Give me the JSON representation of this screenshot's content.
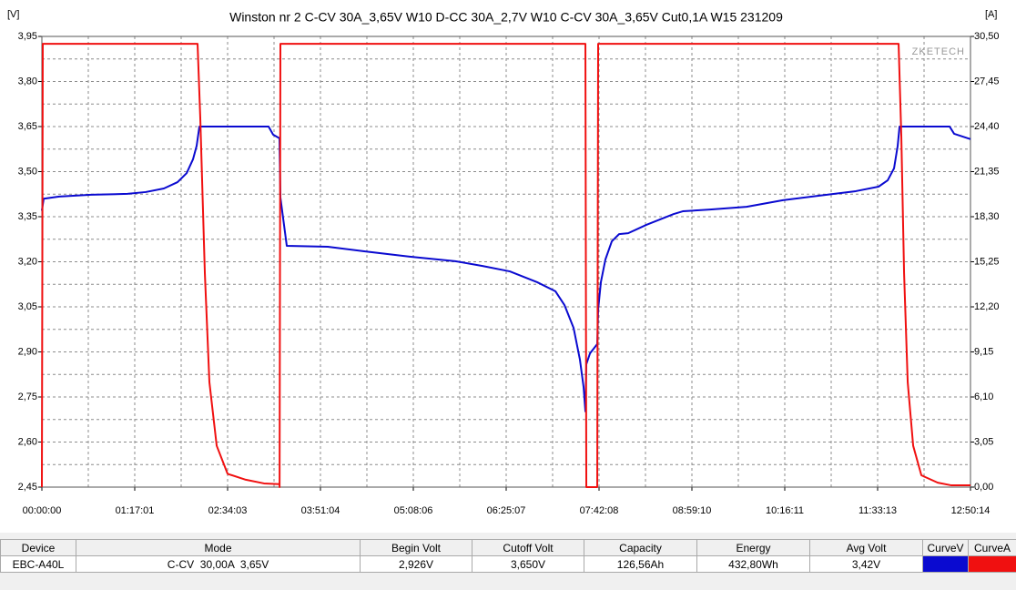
{
  "chart_data": {
    "type": "line",
    "title": "Winston nr 2 C-CV 30A_3,65V W10 D-CC 30A_2,7V W10 C-CV 30A_3,65V Cut0,1A W15 231209",
    "y_label": "[V]",
    "y2_label": "[A]",
    "watermark": "ZKETECH",
    "xlim": [
      0,
      46214
    ],
    "xticks": [
      {
        "value": 0,
        "label": "00:00:00"
      },
      {
        "value": 4621,
        "label": "01:17:01"
      },
      {
        "value": 9243,
        "label": "02:34:03"
      },
      {
        "value": 13864,
        "label": "03:51:04"
      },
      {
        "value": 18486,
        "label": "05:08:06"
      },
      {
        "value": 23107,
        "label": "06:25:07"
      },
      {
        "value": 27728,
        "label": "07:42:08"
      },
      {
        "value": 32350,
        "label": "08:59:10"
      },
      {
        "value": 36971,
        "label": "10:16:11"
      },
      {
        "value": 41593,
        "label": "11:33:13"
      },
      {
        "value": 46214,
        "label": "12:50:14"
      }
    ],
    "ylim": [
      2.45,
      3.95
    ],
    "yticks": [
      {
        "value": 2.45,
        "label": "2,45"
      },
      {
        "value": 2.6,
        "label": "2,60"
      },
      {
        "value": 2.75,
        "label": "2,75"
      },
      {
        "value": 2.9,
        "label": "2,90"
      },
      {
        "value": 3.05,
        "label": "3,05"
      },
      {
        "value": 3.2,
        "label": "3,20"
      },
      {
        "value": 3.35,
        "label": "3,35"
      },
      {
        "value": 3.5,
        "label": "3,50"
      },
      {
        "value": 3.65,
        "label": "3,65"
      },
      {
        "value": 3.8,
        "label": "3,80"
      },
      {
        "value": 3.95,
        "label": "3,95"
      }
    ],
    "y2lim": [
      0,
      30.5
    ],
    "y2ticks": [
      {
        "value": 0,
        "label": "0,00"
      },
      {
        "value": 3.05,
        "label": "3,05"
      },
      {
        "value": 6.1,
        "label": "6,10"
      },
      {
        "value": 9.15,
        "label": "9,15"
      },
      {
        "value": 12.2,
        "label": "12,20"
      },
      {
        "value": 15.25,
        "label": "15,25"
      },
      {
        "value": 18.3,
        "label": "18,30"
      },
      {
        "value": 21.35,
        "label": "21,35"
      },
      {
        "value": 24.4,
        "label": "24,40"
      },
      {
        "value": 27.45,
        "label": "27,45"
      },
      {
        "value": 30.5,
        "label": "30,50"
      }
    ],
    "grid": true,
    "minor_grid": true,
    "series": [
      {
        "name": "CurveV",
        "color": "#0a0ad0",
        "x": [
          0,
          91,
          861,
          2447,
          4259,
          5165,
          6072,
          6751,
          7204,
          7521,
          7703,
          7839,
          11282,
          11509,
          11826,
          11871,
          12188,
          14227,
          16040,
          18305,
          20571,
          21930,
          23289,
          24649,
          25555,
          26008,
          26461,
          26778,
          26959,
          27050,
          27095,
          27277,
          27639,
          27684,
          27820,
          28047,
          28364,
          28726,
          29179,
          30085,
          31445,
          31898,
          33257,
          35069,
          36882,
          38695,
          40507,
          41640,
          42093,
          42410,
          42592,
          42683,
          45175,
          45401,
          46214
        ],
        "values": [
          3.37,
          3.41,
          3.417,
          3.423,
          3.426,
          3.432,
          3.444,
          3.465,
          3.495,
          3.541,
          3.586,
          3.65,
          3.65,
          3.623,
          3.611,
          3.414,
          3.253,
          3.25,
          3.235,
          3.217,
          3.202,
          3.186,
          3.168,
          3.132,
          3.102,
          3.056,
          2.98,
          2.874,
          2.783,
          2.702,
          2.859,
          2.895,
          2.926,
          3.041,
          3.132,
          3.208,
          3.268,
          3.292,
          3.295,
          3.323,
          3.359,
          3.368,
          3.374,
          3.383,
          3.405,
          3.42,
          3.435,
          3.45,
          3.471,
          3.511,
          3.586,
          3.65,
          3.65,
          3.626,
          3.608
        ]
      },
      {
        "name": "CurveA",
        "color": "#f01010",
        "axis": "y2",
        "x": [
          0,
          45,
          7748,
          7884,
          8110,
          8337,
          8700,
          9243,
          10149,
          11056,
          11826,
          11830,
          11871,
          27050,
          27095,
          27639,
          27684,
          42637,
          42773,
          42909,
          43090,
          43362,
          43770,
          44585,
          45265,
          46214
        ],
        "values": [
          0,
          30,
          30,
          24.95,
          14.5,
          7.1,
          2.8,
          0.9,
          0.5,
          0.25,
          0.2,
          0,
          30,
          30,
          0,
          0,
          30,
          30,
          23.7,
          14.5,
          7.1,
          2.8,
          0.8,
          0.3,
          0.12,
          0.12
        ]
      }
    ]
  },
  "table": {
    "columns": [
      "Device",
      "Mode",
      "Begin Volt",
      "Cutoff Volt",
      "Capacity",
      "Energy",
      "Avg Volt"
    ],
    "rows": [
      [
        "EBC-A40L",
        "C-CV  30,00A  3,65V",
        "2,926V",
        "3,650V",
        "126,56Ah",
        "432,80Wh",
        "3,42V"
      ]
    ]
  }
}
